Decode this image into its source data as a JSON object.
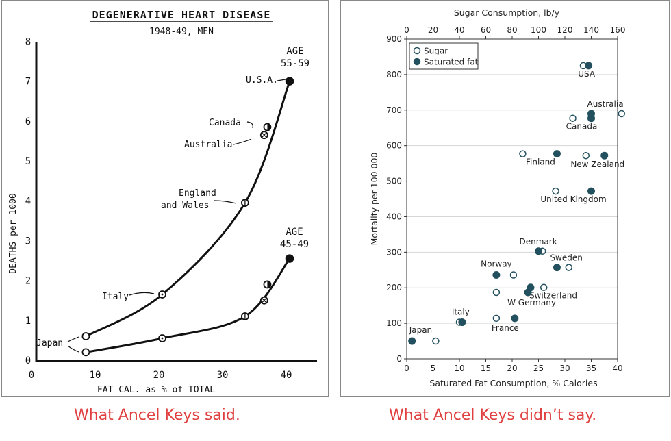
{
  "chart_data": [
    {
      "type": "line",
      "title": "DEGENERATIVE HEART DISEASE",
      "subtitle": "1948-49, MEN",
      "xlabel": "FAT CAL. as % of TOTAL",
      "ylabel": "DEATHS per 1000",
      "xlim": [
        0,
        45
      ],
      "ylim": [
        0,
        8
      ],
      "x_ticks": [
        "0",
        "10",
        "20",
        "30",
        "40"
      ],
      "y_ticks": [
        "0",
        "1",
        "2",
        "3",
        "4",
        "5",
        "6",
        "7",
        "8"
      ],
      "series": [
        {
          "name": "AGE 55-59",
          "label_lines": [
            "AGE",
            "55-59"
          ],
          "points": [
            {
              "country": "Japan",
              "x": 8,
              "y": 0.6
            },
            {
              "country": "Italy",
              "x": 20,
              "y": 1.65
            },
            {
              "country": "England and Wales",
              "x": 33,
              "y": 3.95
            },
            {
              "country": "Australia",
              "x": 36,
              "y": 5.65
            },
            {
              "country": "Canada",
              "x": 36.5,
              "y": 5.85
            },
            {
              "country": "U.S.A.",
              "x": 40,
              "y": 7.0
            }
          ]
        },
        {
          "name": "AGE 45-49",
          "label_lines": [
            "AGE",
            "45-49"
          ],
          "points": [
            {
              "country": "Japan",
              "x": 8,
              "y": 0.2
            },
            {
              "country": "Italy",
              "x": 20,
              "y": 0.55
            },
            {
              "country": "England and Wales",
              "x": 33,
              "y": 1.1
            },
            {
              "country": "Australia",
              "x": 36,
              "y": 1.5
            },
            {
              "country": "Canada",
              "x": 36.5,
              "y": 1.9
            },
            {
              "country": "U.S.A.",
              "x": 40,
              "y": 2.55
            }
          ]
        }
      ],
      "annotations": {
        "japan": "Japan",
        "italy": "Italy",
        "england_line1": "England",
        "england_line2": "and Wales",
        "australia": "Australia",
        "canada": "Canada",
        "usa": "U.S.A."
      },
      "caption": "What Ancel Keys said."
    },
    {
      "type": "scatter",
      "xlabel": "Saturated Fat Consumption, % Calories",
      "x2label": "Sugar Consumption, lb/y",
      "ylabel": "Mortality per 100 000",
      "xlim": [
        0,
        40
      ],
      "x2lim": [
        0,
        160
      ],
      "ylim": [
        0,
        900
      ],
      "x_ticks": [
        "0",
        "5",
        "10",
        "15",
        "20",
        "25",
        "30",
        "35",
        "40"
      ],
      "x2_ticks": [
        "0",
        "20",
        "40",
        "60",
        "80",
        "100",
        "120",
        "140",
        "160"
      ],
      "y_ticks": [
        "0",
        "100",
        "200",
        "300",
        "400",
        "500",
        "600",
        "700",
        "800",
        "900"
      ],
      "grid": true,
      "legend_position": "top-left",
      "legend": [
        "Sugar",
        "Saturated fat"
      ],
      "colors": {
        "fat": "#23505e",
        "sugar_stroke": "#23505e",
        "sugar_fill": "#ffffff"
      },
      "countries": [
        {
          "name": "USA",
          "mortality": 825,
          "fat": 34.5,
          "sugar": 134
        },
        {
          "name": "Australia",
          "mortality": 690,
          "fat": 35,
          "sugar": 163
        },
        {
          "name": "Canada",
          "mortality": 677,
          "fat": 35,
          "sugar": 126
        },
        {
          "name": "Finland",
          "mortality": 577,
          "fat": 28.5,
          "sugar": 88
        },
        {
          "name": "New Zealand",
          "mortality": 572,
          "fat": 37.5,
          "sugar": 136
        },
        {
          "name": "United Kingdom",
          "mortality": 472,
          "fat": 35,
          "sugar": 113
        },
        {
          "name": "Denmark",
          "mortality": 303,
          "fat": 25,
          "sugar": 103
        },
        {
          "name": "Sweden",
          "mortality": 257,
          "fat": 28.5,
          "sugar": 123
        },
        {
          "name": "Norway",
          "mortality": 236,
          "fat": 17,
          "sugar": 81
        },
        {
          "name": "Switzerland",
          "mortality": 201,
          "fat": 23.5,
          "sugar": 104
        },
        {
          "name": "W Germany",
          "mortality": 187,
          "fat": 23,
          "sugar": 68
        },
        {
          "name": "Italy",
          "mortality": 103,
          "fat": 10.5,
          "sugar": 40
        },
        {
          "name": "France",
          "mortality": 114,
          "fat": 20.5,
          "sugar": 68
        },
        {
          "name": "Japan",
          "mortality": 50,
          "fat": 1,
          "sugar": 22
        }
      ],
      "caption": "What Ancel Keys didn’t say."
    }
  ]
}
